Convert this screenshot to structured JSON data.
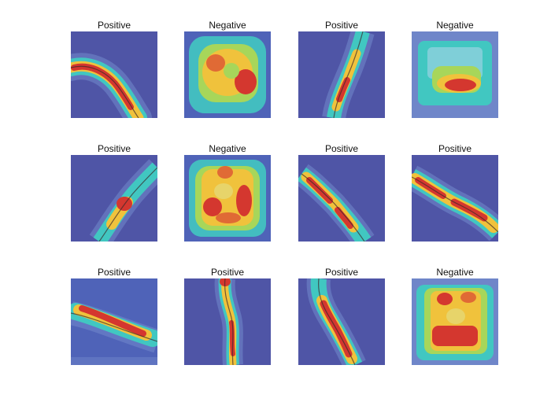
{
  "figure": {
    "panels": [
      {
        "label": "Positive",
        "heat": "crack",
        "shape": "curve-left-arc"
      },
      {
        "label": "Negative",
        "heat": "blob",
        "shape": "ring"
      },
      {
        "label": "Positive",
        "heat": "crack",
        "shape": "vertical-up-right"
      },
      {
        "label": "Negative",
        "heat": "blob",
        "shape": "square-lower"
      },
      {
        "label": "Positive",
        "heat": "crack",
        "shape": "diagonal-up-right"
      },
      {
        "label": "Negative",
        "heat": "blob",
        "shape": "square-full"
      },
      {
        "label": "Positive",
        "heat": "crack",
        "shape": "diagonal-down-right"
      },
      {
        "label": "Positive",
        "heat": "crack",
        "shape": "diagonal-down-right-long"
      },
      {
        "label": "Positive",
        "heat": "crack",
        "shape": "diagonal-shallow"
      },
      {
        "label": "Positive",
        "heat": "crack",
        "shape": "vertical-wavy"
      },
      {
        "label": "Positive",
        "heat": "crack",
        "shape": "vertical-down-right"
      },
      {
        "label": "Negative",
        "heat": "blob",
        "shape": "square-rect"
      }
    ],
    "colors": {
      "background": "#4b4fa6",
      "cool": "#6f86c9",
      "mid": "#41c7c1",
      "warm": "#f0c23c",
      "hot": "#d4372f"
    }
  }
}
